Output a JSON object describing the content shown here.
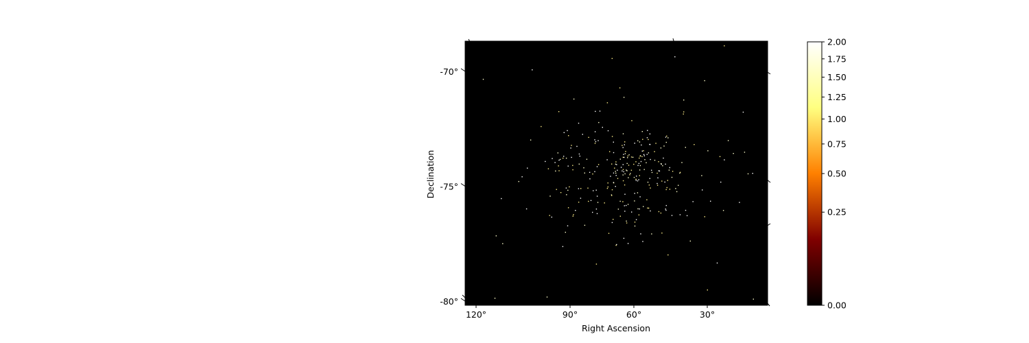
{
  "chart_data": {
    "type": "heatmap",
    "projection": "celestial sky map (curved RA / Dec grid)",
    "xlabel": "Right Ascension",
    "ylabel": "Declination",
    "x_ticks": [
      "120°",
      "90°",
      "60°",
      "30°"
    ],
    "x_tick_values": [
      120,
      90,
      60,
      30
    ],
    "y_ticks": [
      "-70°",
      "-75°",
      "-80°"
    ],
    "y_tick_values": [
      -70,
      -75,
      -80
    ],
    "background_color": "#000000",
    "colormap": "afmhot",
    "colorbar": {
      "scale": "sqrt",
      "range": [
        0.0,
        2.0
      ],
      "tick_values": [
        0.0,
        0.25,
        0.5,
        0.75,
        1.0,
        1.25,
        1.5,
        1.75,
        2.0
      ],
      "tick_labels": [
        "0.00",
        "0.25",
        "0.50",
        "0.75",
        "1.00",
        "1.25",
        "1.50",
        "1.75",
        "2.00"
      ]
    },
    "sources_description": "a few hundred bright point sources (values 1.0–2.0), concentrated near RA ≈ 60°, Dec ≈ -74°",
    "source_count": 320,
    "cluster_center": {
      "ra": 62,
      "dec": -74.4
    },
    "grid": false
  }
}
